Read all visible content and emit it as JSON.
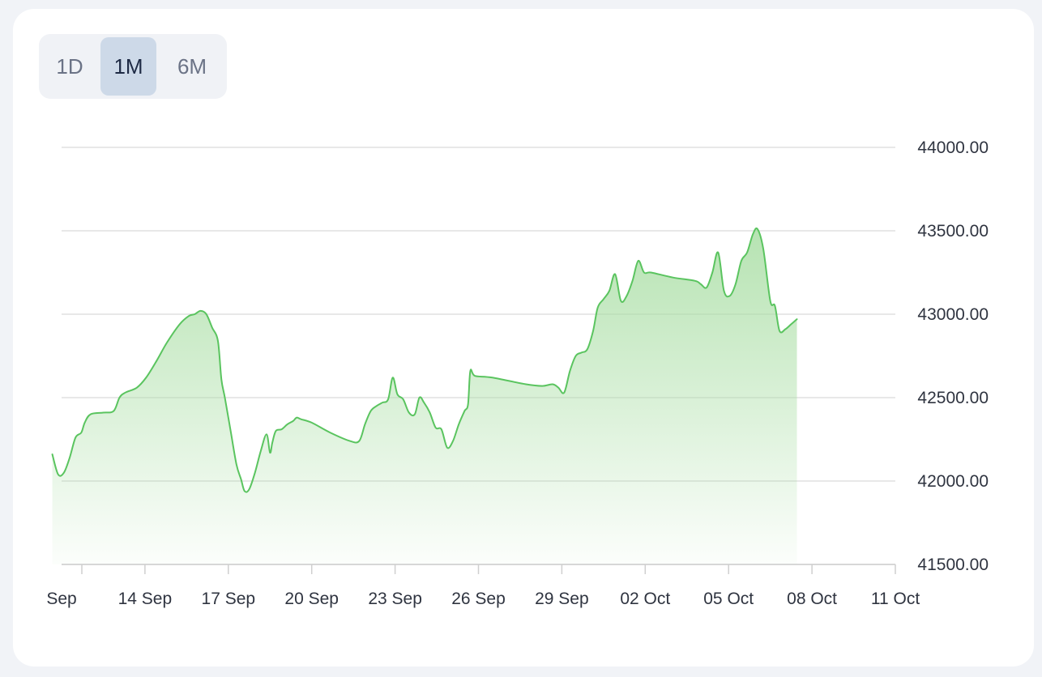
{
  "range_selector": {
    "buttons": [
      {
        "label": "1D",
        "active": false
      },
      {
        "label": "1M",
        "active": true
      },
      {
        "label": "6M",
        "active": false
      }
    ]
  },
  "colors": {
    "line": "#5ac45f",
    "fill_top": "#a9dea4",
    "grid": "#e0e0e0",
    "axis": "#cfcfcf",
    "active_button": "#cdd9e8"
  },
  "chart_data": {
    "type": "area",
    "title": "",
    "xlabel": "",
    "ylabel": "",
    "ylim": [
      41500,
      44000
    ],
    "xlim": [
      "2023-09-11",
      "2023-10-11"
    ],
    "y_axis_position": "right",
    "grid": true,
    "y_ticks": [
      "44000.00",
      "43500.00",
      "43000.00",
      "42500.00",
      "42000.00",
      "41500.00"
    ],
    "x_ticks": [
      {
        "label": "Sep",
        "date": "2023-09-11"
      },
      {
        "label": "14 Sep",
        "date": "2023-09-14"
      },
      {
        "label": "17 Sep",
        "date": "2023-09-17"
      },
      {
        "label": "20 Sep",
        "date": "2023-09-20"
      },
      {
        "label": "23 Sep",
        "date": "2023-09-23"
      },
      {
        "label": "26 Sep",
        "date": "2023-09-26"
      },
      {
        "label": "29 Sep",
        "date": "2023-09-29"
      },
      {
        "label": "02 Oct",
        "date": "2023-10-02"
      },
      {
        "label": "05 Oct",
        "date": "2023-10-05"
      },
      {
        "label": "08 Oct",
        "date": "2023-10-08"
      },
      {
        "label": "11 Oct",
        "date": "2023-10-11"
      }
    ],
    "series": [
      {
        "points": [
          [
            "2023-09-10 16:00",
            42160
          ],
          [
            "2023-09-10 21:00",
            42040
          ],
          [
            "2023-09-11 02:00",
            42050
          ],
          [
            "2023-09-11 07:00",
            42140
          ],
          [
            "2023-09-11 12:00",
            42260
          ],
          [
            "2023-09-11 17:00",
            42290
          ],
          [
            "2023-09-11 20:00",
            42350
          ],
          [
            "2023-09-12 01:00",
            42400
          ],
          [
            "2023-09-12 12:00",
            42410
          ],
          [
            "2023-09-12 21:00",
            42420
          ],
          [
            "2023-09-13 02:00",
            42500
          ],
          [
            "2023-09-13 07:00",
            42530
          ],
          [
            "2023-09-13 17:00",
            42560
          ],
          [
            "2023-09-14 01:00",
            42620
          ],
          [
            "2023-09-14 10:00",
            42720
          ],
          [
            "2023-09-14 19:00",
            42830
          ],
          [
            "2023-09-15 06:00",
            42940
          ],
          [
            "2023-09-15 14:00",
            42990
          ],
          [
            "2023-09-15 19:00",
            43000
          ],
          [
            "2023-09-16 00:00",
            43020
          ],
          [
            "2023-09-16 05:00",
            43000
          ],
          [
            "2023-09-16 10:00",
            42920
          ],
          [
            "2023-09-16 15:00",
            42840
          ],
          [
            "2023-09-16 18:00",
            42610
          ],
          [
            "2023-09-16 21:00",
            42500
          ],
          [
            "2023-09-17 02:00",
            42300
          ],
          [
            "2023-09-17 07:00",
            42100
          ],
          [
            "2023-09-17 11:00",
            42010
          ],
          [
            "2023-09-17 14:00",
            41940
          ],
          [
            "2023-09-17 18:00",
            41950
          ],
          [
            "2023-09-17 23:00",
            42050
          ],
          [
            "2023-09-18 04:00",
            42180
          ],
          [
            "2023-09-18 09:00",
            42280
          ],
          [
            "2023-09-18 12:00",
            42170
          ],
          [
            "2023-09-18 14:00",
            42230
          ],
          [
            "2023-09-18 17:00",
            42300
          ],
          [
            "2023-09-18 22:00",
            42310
          ],
          [
            "2023-09-19 03:00",
            42340
          ],
          [
            "2023-09-19 08:00",
            42360
          ],
          [
            "2023-09-19 11:00",
            42380
          ],
          [
            "2023-09-19 15:00",
            42370
          ],
          [
            "2023-09-20 00:00",
            42350
          ],
          [
            "2023-09-20 16:00",
            42290
          ],
          [
            "2023-09-21 09:00",
            42240
          ],
          [
            "2023-09-21 17:00",
            42240
          ],
          [
            "2023-09-21 22:00",
            42340
          ],
          [
            "2023-09-22 03:00",
            42420
          ],
          [
            "2023-09-22 08:00",
            42450
          ],
          [
            "2023-09-22 13:00",
            42470
          ],
          [
            "2023-09-22 18:00",
            42490
          ],
          [
            "2023-09-22 22:00",
            42620
          ],
          [
            "2023-09-23 02:00",
            42520
          ],
          [
            "2023-09-23 07:00",
            42490
          ],
          [
            "2023-09-23 12:00",
            42410
          ],
          [
            "2023-09-23 17:00",
            42400
          ],
          [
            "2023-09-23 21:00",
            42500
          ],
          [
            "2023-09-24 01:00",
            42470
          ],
          [
            "2023-09-24 06:00",
            42410
          ],
          [
            "2023-09-24 11:00",
            42320
          ],
          [
            "2023-09-24 16:00",
            42310
          ],
          [
            "2023-09-24 21:00",
            42200
          ],
          [
            "2023-09-25 02:00",
            42240
          ],
          [
            "2023-09-25 07:00",
            42340
          ],
          [
            "2023-09-25 12:00",
            42420
          ],
          [
            "2023-09-25 15:00",
            42460
          ],
          [
            "2023-09-25 17:00",
            42660
          ],
          [
            "2023-09-25 21:00",
            42630
          ],
          [
            "2023-09-26 12:00",
            42620
          ],
          [
            "2023-09-27 17:00",
            42580
          ],
          [
            "2023-09-28 07:00",
            42570
          ],
          [
            "2023-09-28 16:00",
            42580
          ],
          [
            "2023-09-28 21:00",
            42560
          ],
          [
            "2023-09-29 02:00",
            42530
          ],
          [
            "2023-09-29 07:00",
            42660
          ],
          [
            "2023-09-29 12:00",
            42750
          ],
          [
            "2023-09-29 17:00",
            42770
          ],
          [
            "2023-09-29 22:00",
            42790
          ],
          [
            "2023-09-30 03:00",
            42900
          ],
          [
            "2023-09-30 07:00",
            43040
          ],
          [
            "2023-09-30 12:00",
            43090
          ],
          [
            "2023-09-30 17:00",
            43140
          ],
          [
            "2023-09-30 22:00",
            43240
          ],
          [
            "2023-10-01 03:00",
            43080
          ],
          [
            "2023-10-01 08:00",
            43110
          ],
          [
            "2023-10-01 13:00",
            43200
          ],
          [
            "2023-10-01 18:00",
            43320
          ],
          [
            "2023-10-01 23:00",
            43250
          ],
          [
            "2023-10-02 05:00",
            43250
          ],
          [
            "2023-10-03 00:00",
            43220
          ],
          [
            "2023-10-03 19:00",
            43200
          ],
          [
            "2023-10-04 00:00",
            43180
          ],
          [
            "2023-10-04 05:00",
            43160
          ],
          [
            "2023-10-04 10:00",
            43250
          ],
          [
            "2023-10-04 15:00",
            43370
          ],
          [
            "2023-10-04 20:00",
            43140
          ],
          [
            "2023-10-05 01:00",
            43110
          ],
          [
            "2023-10-05 06:00",
            43180
          ],
          [
            "2023-10-05 11:00",
            43320
          ],
          [
            "2023-10-05 16:00",
            43370
          ],
          [
            "2023-10-05 21:00",
            43480
          ],
          [
            "2023-10-06 01:00",
            43510
          ],
          [
            "2023-10-06 06:00",
            43390
          ],
          [
            "2023-10-06 12:00",
            43080
          ],
          [
            "2023-10-06 16:00",
            43050
          ],
          [
            "2023-10-06 20:00",
            42900
          ],
          [
            "2023-10-07 01:00",
            42910
          ],
          [
            "2023-10-07 06:00",
            42940
          ],
          [
            "2023-10-07 11:00",
            42970
          ]
        ]
      }
    ]
  }
}
